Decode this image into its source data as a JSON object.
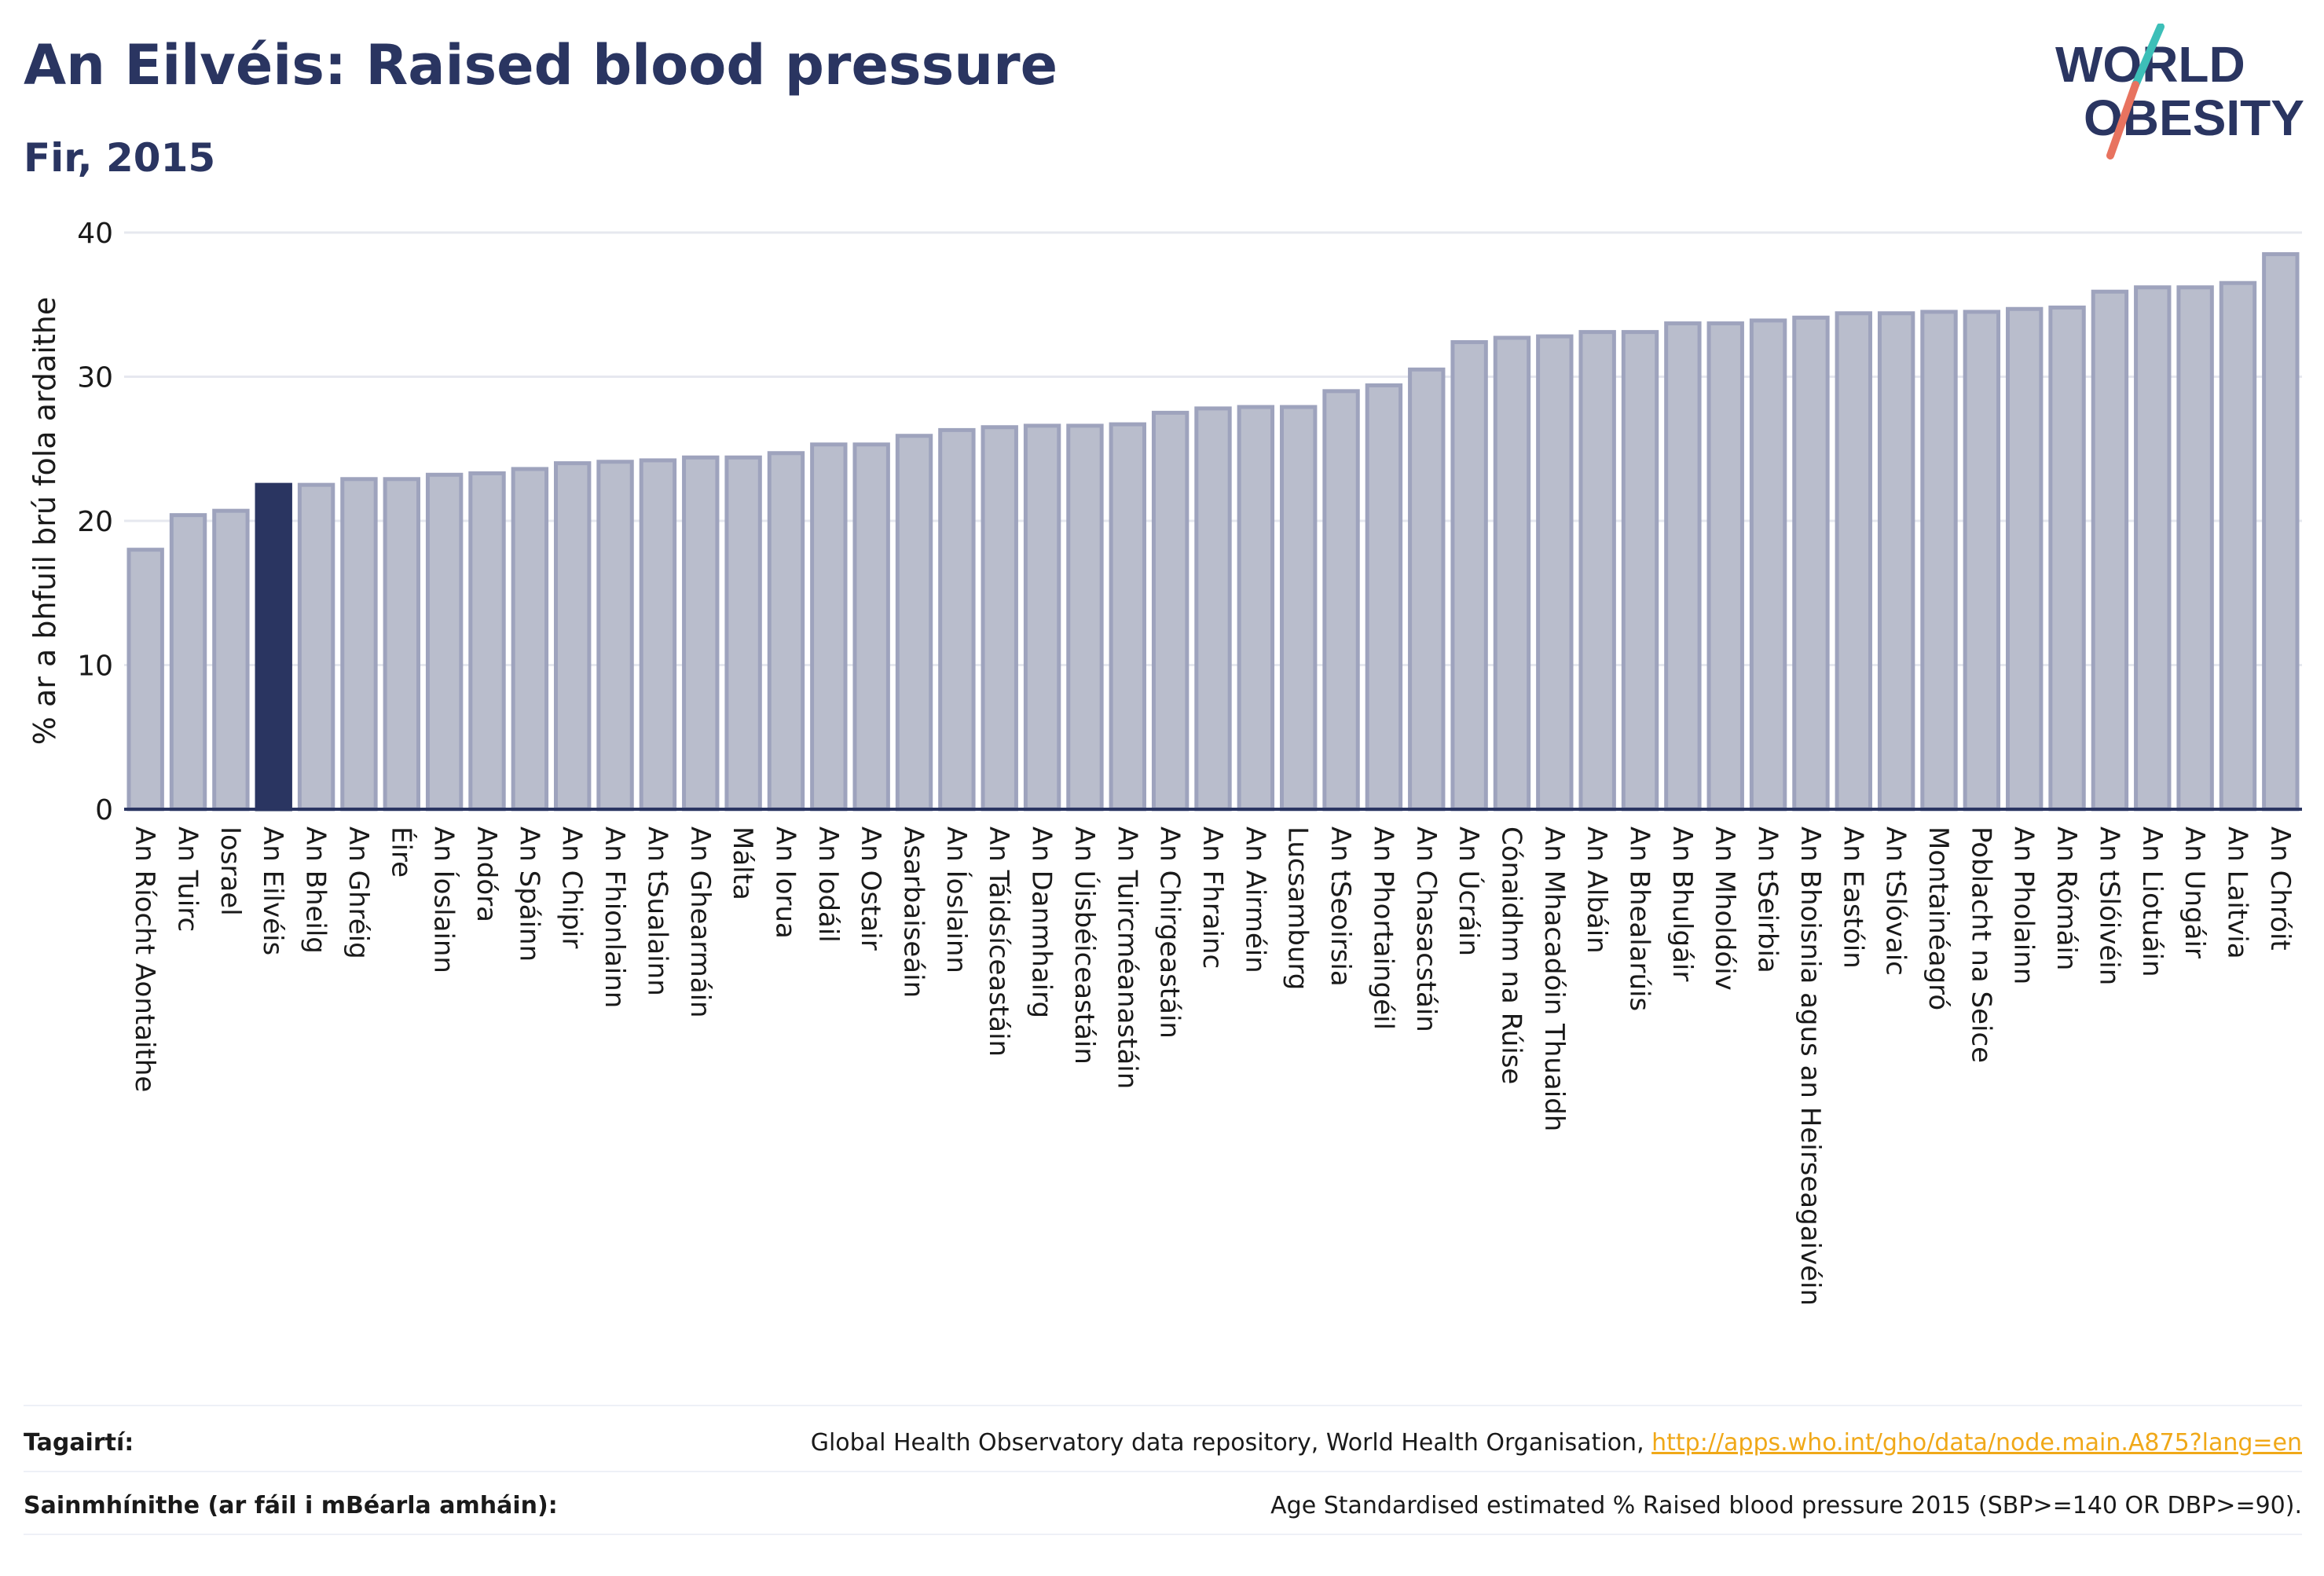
{
  "header": {
    "title": "An Eilvéis: Raised blood pressure",
    "subtitle": "Fir, 2015",
    "logo_line1": "WORLD",
    "logo_line2": "OBESITY"
  },
  "colors": {
    "highlight": "#2a3561",
    "bar_fill": "#b9bdcc",
    "bar_stroke": "#9ea3bd",
    "title": "#2a3561",
    "link": "#f0a818",
    "logo_teal": "#3dbfb8",
    "logo_coral": "#e8735f"
  },
  "chart_data": {
    "type": "bar",
    "ylabel": "% ar a bhfuil brú fola ardaithe",
    "ylim": [
      0,
      40
    ],
    "yticks": [
      0,
      10,
      20,
      30,
      40
    ],
    "grid": true,
    "highlight": "An Eilvéis",
    "categories": [
      "An Ríocht Aontaithe",
      "An Tuirc",
      "Iosrael",
      "An Eilvéis",
      "An Bheilg",
      "An Ghréig",
      "Éire",
      "An Íoslainn",
      "Andóra",
      "An Spáinn",
      "An Chipir",
      "An Fhionlainn",
      "An tSualainn",
      "An Ghearmáin",
      "Málta",
      "An Iorua",
      "An Iodáil",
      "An Ostair",
      "Asarbaiseáin",
      "An Íoslainn",
      "An Táidsíceastáin",
      "An Danmhairg",
      "An Úisbéiceastáin",
      "An Tuircméanastáin",
      "An Chirgeastáin",
      "An Fhrainc",
      "An Airméin",
      "Lucsamburg",
      "An tSeoirsia",
      "An Phortaingéil",
      "An Chasacstáin",
      "An Úcráin",
      "Cónaidhm na Rúise",
      "An Mhacadóin Thuaidh",
      "An Albáin",
      "An Bhealarúis",
      "An Bhulgáir",
      "An Mholdóiv",
      "An tSeirbia",
      "An Bhoisnia agus an Heirseagaivéin",
      "An Eastóin",
      "An tSlóvaic",
      "Montainéagró",
      "Poblacht na Seice",
      "An Pholainn",
      "An Rómáin",
      "An tSlóivéin",
      "An Liotuáin",
      "An Ungáir",
      "An Laitvia",
      "An Chróit"
    ],
    "values": [
      18.0,
      20.4,
      20.7,
      22.5,
      22.5,
      22.9,
      22.9,
      23.2,
      23.3,
      23.6,
      24.0,
      24.1,
      24.2,
      24.4,
      24.4,
      24.7,
      25.3,
      25.3,
      25.9,
      26.3,
      26.5,
      26.6,
      26.6,
      26.7,
      27.5,
      27.8,
      27.9,
      27.9,
      29.0,
      29.4,
      30.5,
      32.4,
      32.7,
      32.8,
      33.1,
      33.1,
      33.7,
      33.7,
      33.9,
      34.1,
      34.4,
      34.4,
      34.5,
      34.5,
      34.7,
      34.8,
      35.9,
      36.2,
      36.2,
      36.5,
      38.5
    ]
  },
  "footer": {
    "refs_label": "Tagairtí:",
    "refs_text": "Global Health Observatory data repository, World Health Organisation, ",
    "refs_link": "http://apps.who.int/gho/data/node.main.A875?lang=en",
    "defs_label": "Sainmhínithe (ar fáil i mBéarla amháin):",
    "defs_text": "Age Standardised estimated % Raised blood pressure 2015 (SBP>=140 OR DBP>=90)."
  }
}
